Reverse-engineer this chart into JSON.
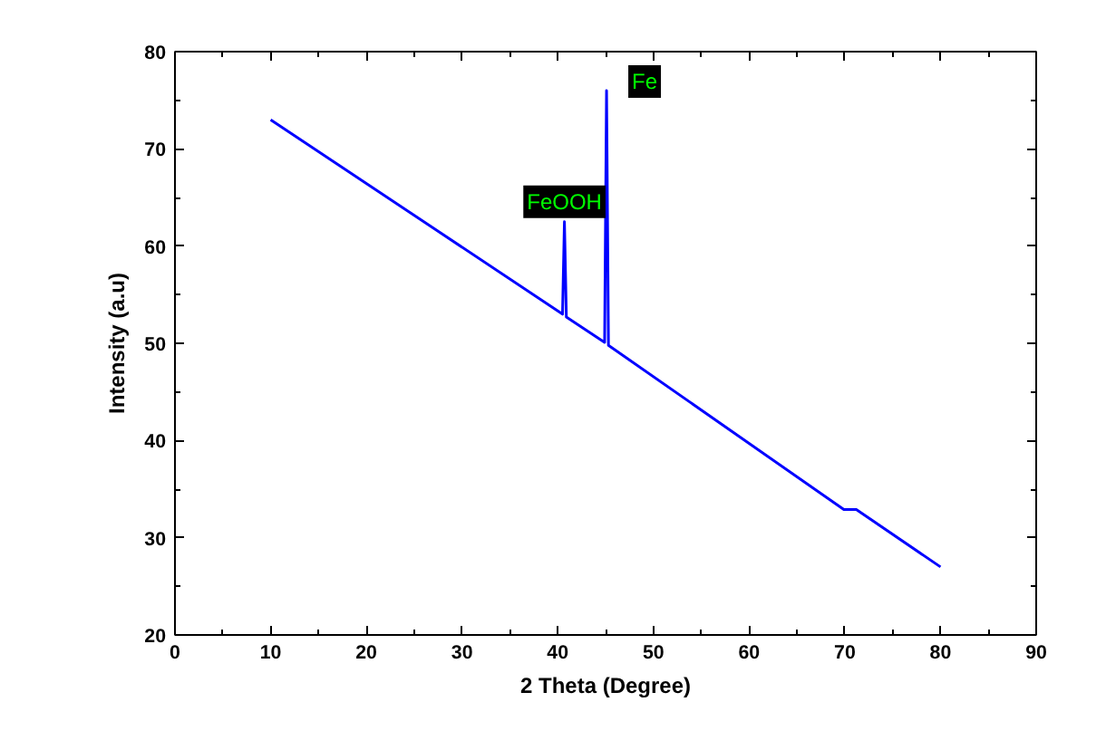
{
  "chart_data": {
    "type": "line",
    "xlabel": "2 Theta (Degree)",
    "ylabel": "Intensity (a.u)",
    "x": [
      10,
      40.5,
      40.7,
      40.9,
      44.9,
      45.1,
      45.3,
      69.9,
      71.2,
      80
    ],
    "series": [
      {
        "color": "#0000ff",
        "values": [
          73,
          53.0,
          62.5,
          52.7,
          50.1,
          76,
          49.8,
          32.9,
          32.9,
          27
        ]
      }
    ],
    "xlim": [
      0,
      90
    ],
    "xticks": [
      0,
      10,
      20,
      30,
      40,
      50,
      60,
      70,
      80,
      90
    ],
    "ylim": [
      20,
      80
    ],
    "yticks": [
      20,
      30,
      40,
      50,
      60,
      70,
      80
    ],
    "annotations": [
      {
        "text": "FeOOH",
        "x": 40.7,
        "y": 62.5
      },
      {
        "text": "Fe",
        "x": 45.1,
        "y": 76
      }
    ],
    "grid": false,
    "marker": "none",
    "line_style": "solid"
  }
}
